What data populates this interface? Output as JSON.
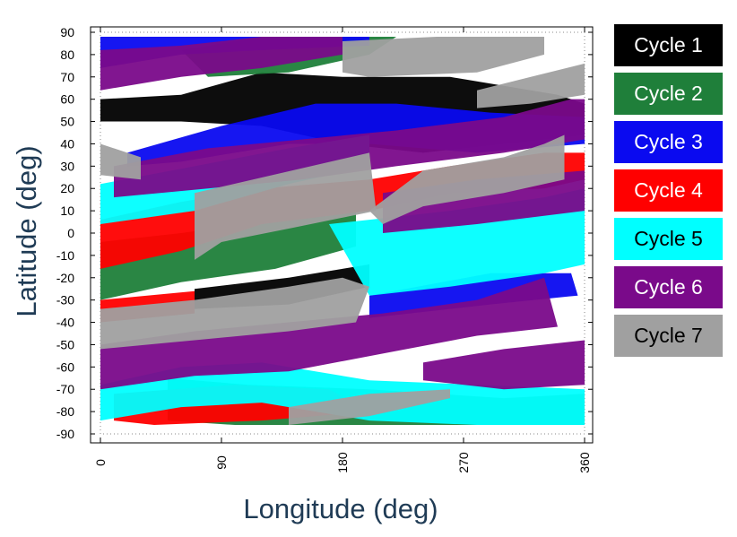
{
  "chart_data": {
    "type": "scatter",
    "xlabel": "Longitude (deg)",
    "ylabel": "Latitude (deg)",
    "xlim": [
      0,
      360
    ],
    "ylim": [
      -90,
      90
    ],
    "xticks": [
      0,
      90,
      180,
      270,
      360
    ],
    "yticks": [
      90,
      80,
      70,
      60,
      50,
      40,
      30,
      20,
      10,
      0,
      -10,
      -20,
      -30,
      -40,
      -50,
      -60,
      -70,
      -80,
      -90
    ],
    "legend_position": "right",
    "series": [
      {
        "name": "Cycle 1",
        "color": "#000000",
        "text_color": "#ffffff",
        "bands": [
          {
            "polygon": [
              [
                0,
                60
              ],
              [
                60,
                62
              ],
              [
                120,
                72
              ],
              [
                180,
                70
              ],
              [
                260,
                70
              ],
              [
                340,
                62
              ],
              [
                360,
                58
              ],
              [
                360,
                44
              ],
              [
                300,
                40
              ],
              [
                240,
                36
              ],
              [
                180,
                40
              ],
              [
                120,
                48
              ],
              [
                60,
                50
              ],
              [
                0,
                50
              ]
            ]
          },
          {
            "polygon": [
              [
                70,
                -25
              ],
              [
                140,
                -20
              ],
              [
                200,
                -14
              ],
              [
                200,
                -24
              ],
              [
                140,
                -32
              ],
              [
                70,
                -34
              ]
            ]
          }
        ]
      },
      {
        "name": "Cycle 2",
        "color": "#1f7f3a",
        "text_color": "#ffffff",
        "bands": [
          {
            "polygon": [
              [
                60,
                82
              ],
              [
                120,
                88
              ],
              [
                220,
                88
              ],
              [
                200,
                80
              ],
              [
                140,
                72
              ],
              [
                80,
                70
              ]
            ]
          },
          {
            "polygon": [
              [
                0,
                -4
              ],
              [
                60,
                0
              ],
              [
                130,
                6
              ],
              [
                190,
                14
              ],
              [
                190,
                -6
              ],
              [
                130,
                -16
              ],
              [
                60,
                -22
              ],
              [
                0,
                -30
              ]
            ]
          },
          {
            "polygon": [
              [
                50,
                -65
              ],
              [
                110,
                -68
              ],
              [
                200,
                -70
              ],
              [
                300,
                -74
              ],
              [
                360,
                -72
              ],
              [
                360,
                -86
              ],
              [
                280,
                -86
              ],
              [
                180,
                -86
              ],
              [
                100,
                -86
              ],
              [
                50,
                -84
              ]
            ]
          }
        ]
      },
      {
        "name": "Cycle 3",
        "color": "#0a0af0",
        "text_color": "#ffffff",
        "bands": [
          {
            "polygon": [
              [
                0,
                88
              ],
              [
                120,
                88
              ],
              [
                200,
                88
              ],
              [
                200,
                84
              ],
              [
                120,
                82
              ],
              [
                60,
                80
              ],
              [
                0,
                74
              ]
            ]
          },
          {
            "polygon": [
              [
                20,
                36
              ],
              [
                90,
                48
              ],
              [
                160,
                58
              ],
              [
                220,
                58
              ],
              [
                290,
                54
              ],
              [
                360,
                52
              ],
              [
                360,
                40
              ],
              [
                280,
                36
              ],
              [
                200,
                40
              ],
              [
                140,
                40
              ],
              [
                60,
                32
              ],
              [
                20,
                30
              ]
            ]
          },
          {
            "polygon": [
              [
                200,
                -28
              ],
              [
                290,
                -18
              ],
              [
                350,
                -18
              ],
              [
                355,
                -28
              ],
              [
                290,
                -32
              ],
              [
                200,
                -38
              ]
            ]
          }
        ]
      },
      {
        "name": "Cycle 4",
        "color": "#ff0000",
        "text_color": "#ffffff",
        "bands": [
          {
            "polygon": [
              [
                0,
                6
              ],
              [
                60,
                14
              ],
              [
                120,
                20
              ],
              [
                200,
                24
              ],
              [
                260,
                30
              ],
              [
                330,
                36
              ],
              [
                360,
                36
              ],
              [
                360,
                24
              ],
              [
                330,
                20
              ],
              [
                260,
                18
              ],
              [
                200,
                10
              ],
              [
                120,
                4
              ],
              [
                60,
                -8
              ],
              [
                0,
                -16
              ]
            ]
          },
          {
            "polygon": [
              [
                0,
                -30
              ],
              [
                70,
                -26
              ],
              [
                70,
                -36
              ],
              [
                0,
                -40
              ]
            ]
          },
          {
            "polygon": [
              [
                10,
                -72
              ],
              [
                100,
                -68
              ],
              [
                170,
                -70
              ],
              [
                200,
                -80
              ],
              [
                120,
                -84
              ],
              [
                40,
                -86
              ],
              [
                10,
                -84
              ]
            ]
          }
        ]
      },
      {
        "name": "Cycle 5",
        "color": "#00ffff",
        "text_color": "#000000",
        "bands": [
          {
            "polygon": [
              [
                0,
                22
              ],
              [
                70,
                30
              ],
              [
                140,
                38
              ],
              [
                200,
                44
              ],
              [
                200,
                30
              ],
              [
                140,
                22
              ],
              [
                70,
                10
              ],
              [
                0,
                4
              ]
            ]
          },
          {
            "polygon": [
              [
                170,
                4
              ],
              [
                200,
                -28
              ],
              [
                260,
                -24
              ],
              [
                330,
                -18
              ],
              [
                360,
                -14
              ],
              [
                360,
                20
              ],
              [
                330,
                16
              ],
              [
                260,
                10
              ],
              [
                200,
                6
              ]
            ]
          },
          {
            "polygon": [
              [
                0,
                -68
              ],
              [
                60,
                -60
              ],
              [
                120,
                -58
              ],
              [
                200,
                -66
              ],
              [
                280,
                -68
              ],
              [
                360,
                -70
              ],
              [
                360,
                -86
              ],
              [
                280,
                -86
              ],
              [
                200,
                -84
              ],
              [
                120,
                -76
              ],
              [
                60,
                -78
              ],
              [
                0,
                -84
              ]
            ]
          }
        ]
      },
      {
        "name": "Cycle 6",
        "color": "#7a0a8a",
        "text_color": "#ffffff",
        "bands": [
          {
            "polygon": [
              [
                0,
                82
              ],
              [
                60,
                84
              ],
              [
                120,
                88
              ],
              [
                180,
                88
              ],
              [
                180,
                80
              ],
              [
                120,
                74
              ],
              [
                60,
                70
              ],
              [
                0,
                64
              ]
            ]
          },
          {
            "polygon": [
              [
                10,
                30
              ],
              [
                80,
                38
              ],
              [
                150,
                42
              ],
              [
                220,
                46
              ],
              [
                300,
                52
              ],
              [
                350,
                60
              ],
              [
                360,
                60
              ],
              [
                360,
                42
              ],
              [
                300,
                36
              ],
              [
                220,
                30
              ],
              [
                150,
                24
              ],
              [
                80,
                20
              ],
              [
                10,
                16
              ]
            ]
          },
          {
            "polygon": [
              [
                210,
                18
              ],
              [
                280,
                24
              ],
              [
                360,
                28
              ],
              [
                360,
                10
              ],
              [
                280,
                4
              ],
              [
                210,
                0
              ]
            ]
          },
          {
            "polygon": [
              [
                0,
                -50
              ],
              [
                70,
                -44
              ],
              [
                140,
                -40
              ],
              [
                210,
                -36
              ],
              [
                280,
                -30
              ],
              [
                330,
                -20
              ],
              [
                340,
                -42
              ],
              [
                280,
                -46
              ],
              [
                210,
                -54
              ],
              [
                140,
                -62
              ],
              [
                70,
                -64
              ],
              [
                0,
                -70
              ]
            ]
          },
          {
            "polygon": [
              [
                240,
                -58
              ],
              [
                300,
                -52
              ],
              [
                360,
                -48
              ],
              [
                360,
                -68
              ],
              [
                300,
                -70
              ],
              [
                240,
                -66
              ]
            ]
          }
        ]
      },
      {
        "name": "Cycle 7",
        "color": "#a0a0a0",
        "text_color": "#000000",
        "bands": [
          {
            "polygon": [
              [
                180,
                86
              ],
              [
                250,
                88
              ],
              [
                330,
                88
              ],
              [
                330,
                80
              ],
              [
                280,
                72
              ],
              [
                200,
                70
              ],
              [
                180,
                72
              ]
            ]
          },
          {
            "polygon": [
              [
                0,
                40
              ],
              [
                30,
                34
              ],
              [
                30,
                24
              ],
              [
                0,
                26
              ]
            ]
          },
          {
            "polygon": [
              [
                70,
                18
              ],
              [
                200,
                36
              ],
              [
                205,
                10
              ],
              [
                140,
                2
              ],
              [
                90,
                -4
              ],
              [
                70,
                -12
              ]
            ]
          },
          {
            "polygon": [
              [
                200,
                10
              ],
              [
                240,
                28
              ],
              [
                300,
                34
              ],
              [
                330,
                40
              ],
              [
                345,
                44
              ],
              [
                345,
                24
              ],
              [
                300,
                18
              ],
              [
                240,
                12
              ],
              [
                210,
                4
              ]
            ]
          },
          {
            "polygon": [
              [
                280,
                64
              ],
              [
                320,
                70
              ],
              [
                360,
                76
              ],
              [
                360,
                62
              ],
              [
                320,
                58
              ],
              [
                280,
                56
              ]
            ]
          },
          {
            "polygon": [
              [
                0,
                -34
              ],
              [
                70,
                -30
              ],
              [
                140,
                -24
              ],
              [
                180,
                -20
              ],
              [
                200,
                -24
              ],
              [
                190,
                -40
              ],
              [
                140,
                -44
              ],
              [
                70,
                -48
              ],
              [
                0,
                -52
              ]
            ]
          },
          {
            "polygon": [
              [
                140,
                -78
              ],
              [
                200,
                -72
              ],
              [
                260,
                -70
              ],
              [
                260,
                -74
              ],
              [
                200,
                -82
              ],
              [
                140,
                -86
              ]
            ]
          }
        ]
      }
    ]
  }
}
